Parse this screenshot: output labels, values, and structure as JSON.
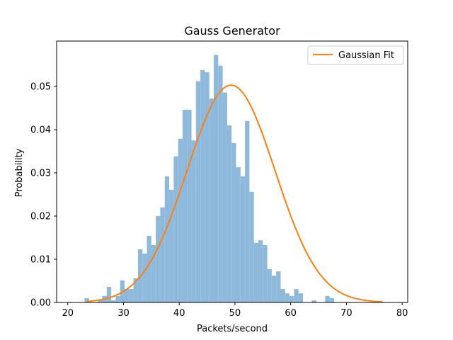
{
  "chart_data": {
    "type": "bar",
    "title": "Gauss Generator",
    "xlabel": "Packets/second",
    "ylabel": "Probability",
    "xlim": [
      18,
      81
    ],
    "ylim": [
      0,
      0.0605
    ],
    "xticks": [
      20,
      30,
      40,
      50,
      60,
      70,
      80
    ],
    "yticks": [
      0.0,
      0.01,
      0.02,
      0.03,
      0.04,
      0.05
    ],
    "ytick_labels": [
      "0.00",
      "0.01",
      "0.02",
      "0.03",
      "0.04",
      "0.05"
    ],
    "legend_position": "top-right",
    "histogram": {
      "color": "#8fb9da",
      "bin_start": 23.0,
      "bin_width": 0.8,
      "values": [
        0.001,
        0.0,
        0.0,
        0.0005,
        0.0015,
        0.0036,
        0.0005,
        0.0015,
        0.0051,
        0.0031,
        0.0031,
        0.0056,
        0.0123,
        0.0113,
        0.0154,
        0.0133,
        0.02,
        0.022,
        0.0292,
        0.0261,
        0.0338,
        0.0379,
        0.0446,
        0.0446,
        0.0375,
        0.0512,
        0.0538,
        0.0533,
        0.0472,
        0.0573,
        0.0548,
        0.0486,
        0.041,
        0.0369,
        0.0313,
        0.0292,
        0.042,
        0.0256,
        0.0138,
        0.0144,
        0.0133,
        0.0077,
        0.0062,
        0.0072,
        0.0031,
        0.0021,
        0.0015,
        0.0031,
        0.0021,
        0.0,
        0.0,
        0.0005,
        0.0,
        0.0,
        0.0015,
        0.001,
        0.0,
        0.0,
        0.0,
        0.0,
        0.0,
        0.0,
        0.0,
        0.0,
        0.0,
        0.0,
        0.0
      ]
    },
    "series": [
      {
        "name": "Gaussian Fit",
        "color": "#ff7f0e",
        "kind": "gaussian",
        "mean": 49.3,
        "std": 7.9,
        "peak": 0.0503,
        "x_range": [
          23.5,
          76.5
        ]
      }
    ]
  }
}
